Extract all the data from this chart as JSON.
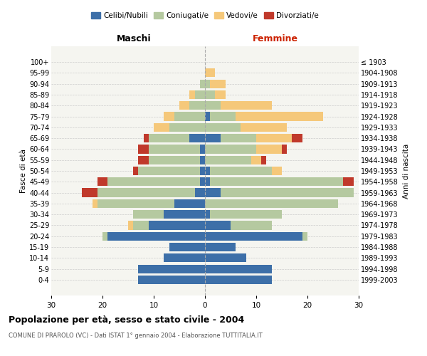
{
  "age_groups": [
    "100+",
    "95-99",
    "90-94",
    "85-89",
    "80-84",
    "75-79",
    "70-74",
    "65-69",
    "60-64",
    "55-59",
    "50-54",
    "45-49",
    "40-44",
    "35-39",
    "30-34",
    "25-29",
    "20-24",
    "15-19",
    "10-14",
    "5-9",
    "0-4"
  ],
  "birth_years": [
    "≤ 1903",
    "1904-1908",
    "1909-1913",
    "1914-1918",
    "1919-1923",
    "1924-1928",
    "1929-1933",
    "1934-1938",
    "1939-1943",
    "1944-1948",
    "1949-1953",
    "1954-1958",
    "1959-1963",
    "1964-1968",
    "1969-1973",
    "1974-1978",
    "1979-1983",
    "1984-1988",
    "1989-1993",
    "1994-1998",
    "1999-2003"
  ],
  "maschi": {
    "celibi": [
      0,
      0,
      0,
      0,
      0,
      0,
      0,
      3,
      1,
      1,
      1,
      1,
      2,
      6,
      8,
      11,
      19,
      7,
      8,
      13,
      13
    ],
    "coniugati": [
      0,
      0,
      1,
      2,
      3,
      6,
      7,
      8,
      10,
      10,
      12,
      18,
      19,
      15,
      6,
      3,
      1,
      0,
      0,
      0,
      0
    ],
    "vedovi": [
      0,
      0,
      0,
      1,
      2,
      2,
      3,
      0,
      0,
      0,
      0,
      0,
      0,
      1,
      0,
      1,
      0,
      0,
      0,
      0,
      0
    ],
    "divorziati": [
      0,
      0,
      0,
      0,
      0,
      0,
      0,
      1,
      2,
      2,
      1,
      2,
      3,
      0,
      0,
      0,
      0,
      0,
      0,
      0,
      0
    ]
  },
  "femmine": {
    "nubili": [
      0,
      0,
      0,
      0,
      0,
      1,
      0,
      3,
      0,
      0,
      1,
      1,
      3,
      0,
      1,
      5,
      19,
      6,
      8,
      13,
      13
    ],
    "coniugate": [
      0,
      0,
      1,
      2,
      3,
      5,
      7,
      7,
      10,
      9,
      12,
      26,
      26,
      26,
      14,
      8,
      1,
      0,
      0,
      0,
      0
    ],
    "vedove": [
      0,
      2,
      3,
      2,
      10,
      17,
      9,
      7,
      5,
      2,
      2,
      0,
      0,
      0,
      0,
      0,
      0,
      0,
      0,
      0,
      0
    ],
    "divorziate": [
      0,
      0,
      0,
      0,
      0,
      0,
      0,
      2,
      1,
      1,
      0,
      2,
      0,
      0,
      0,
      0,
      0,
      0,
      0,
      0,
      0
    ]
  },
  "colors": {
    "celibi": "#3d6fa8",
    "coniugati": "#b5c9a0",
    "vedovi": "#f5c87a",
    "divorziati": "#c0392b"
  },
  "title": "Popolazione per età, sesso e stato civile - 2004",
  "subtitle": "COMUNE DI PRAROLO (VC) - Dati ISTAT 1° gennaio 2004 - Elaborazione TUTTITALIA.IT",
  "ylabel_left": "Fasce di età",
  "ylabel_right": "Anni di nascita",
  "xlim": 30,
  "bg_color": "#ffffff",
  "plot_bg_color": "#f5f5f0",
  "grid_color": "#cccccc",
  "bar_height": 0.8
}
